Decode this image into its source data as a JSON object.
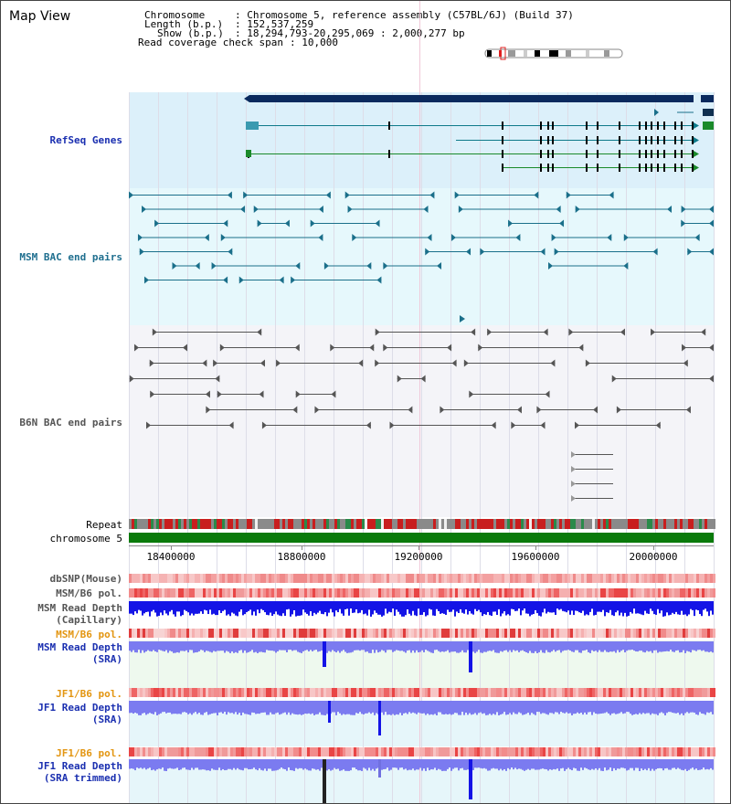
{
  "page": {
    "title": "Map View"
  },
  "info": {
    "chromosome_label": "Chromosome",
    "chromosome_value": "Chromosome 5, reference assembly (C57BL/6J) (Build 37)",
    "length_label": "Length (b.p.)",
    "length_value": "152,537,259",
    "show_label": "Show (b.p.)",
    "show_value": "18,294,793-20,295,069 : 2,000,277 bp",
    "span_label": "Read coverage check span",
    "span_value": "10,000"
  },
  "tracks": {
    "refseq": "RefSeq Genes",
    "msm_bac": "MSM BAC end pairs",
    "b6n_bac": "B6N BAC end pairs",
    "repeat": "Repeat",
    "chromosome": "chromosome 5",
    "dbsnp": "dbSNP(Mouse)",
    "msm_b6_pol_1": "MSM/B6 pol.",
    "msm_depth_cap_1": "MSM Read Depth",
    "msm_depth_cap_2": "(Capillary)",
    "msm_b6_pol_2": "MSM/B6 pol.",
    "msm_depth_sra_1": "MSM Read Depth",
    "msm_depth_sra_2": "(SRA)",
    "jf1_b6_pol_1": "JF1/B6 pol.",
    "jf1_depth_sra_1": "JF1 Read Depth",
    "jf1_depth_sra_2": "(SRA)",
    "jf1_b6_pol_2": "JF1/B6 pol.",
    "jf1_depth_trim_1": "JF1 Read Depth",
    "jf1_depth_trim_2": "(SRA trimmed)"
  },
  "axis": {
    "ticks": [
      "18400000",
      "18800000",
      "19200000",
      "19600000",
      "20000000"
    ]
  },
  "colors": {
    "refseq_bg": "#dcf0fa",
    "msm_bg": "#e6f8fc",
    "b6n_bg": "#f4f4f8",
    "refseq_line": "#0e7a8a",
    "refseq_bar": "#0a2a5e",
    "msm_line": "#1a6f8a",
    "b6n_line": "#555555",
    "chromosome": "#0a7a0a",
    "depth_dark": "#1414e6",
    "depth_light": "#7b7bf0",
    "pol_red": "#e03c3c"
  }
}
